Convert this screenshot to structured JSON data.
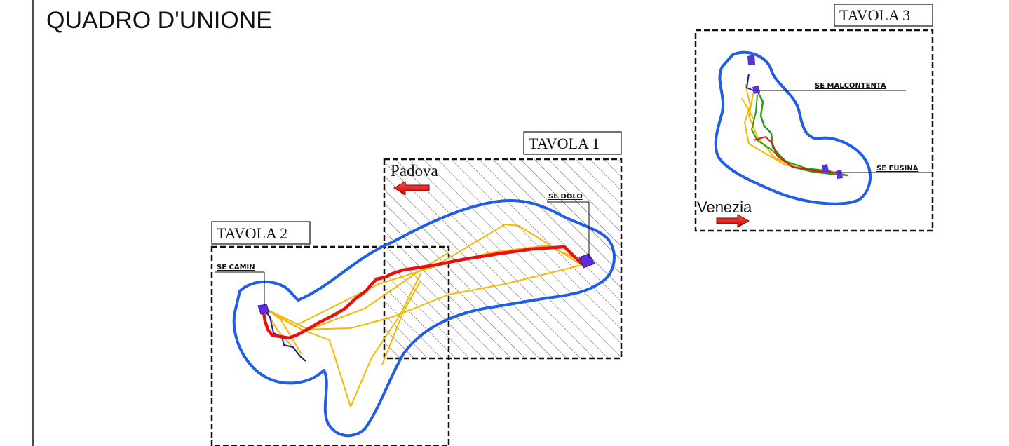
{
  "map": {
    "title": "QUADRO D'UNIONE",
    "sheets": [
      {
        "id": "tavola-1",
        "label": "TAVOLA 1"
      },
      {
        "id": "tavola-2",
        "label": "TAVOLA 2"
      },
      {
        "id": "tavola-3",
        "label": "TAVOLA 3"
      }
    ],
    "cities": [
      {
        "id": "padova",
        "label": "Padova",
        "arrow_direction": "left"
      },
      {
        "id": "venezia",
        "label": "Venezia",
        "arrow_direction": "right"
      }
    ],
    "substations": [
      {
        "id": "se-camin",
        "label": "SE CAMIN"
      },
      {
        "id": "se-dolo",
        "label": "SE DOLO"
      },
      {
        "id": "se-malcontenta",
        "label": "SE MALCONTENTA"
      },
      {
        "id": "se-fusina",
        "label": "SE FUSINA"
      }
    ],
    "colors": {
      "buffer_outline": "#1f5ee6",
      "primary_route": "#e81010",
      "alternative_routes": "#f5b800",
      "existing_line": "#1a1aa8",
      "green_route": "#2a9a1a",
      "substation_marker": "#5b2ee0",
      "arrow": "#e81010",
      "sheet_border": "#111111"
    }
  }
}
